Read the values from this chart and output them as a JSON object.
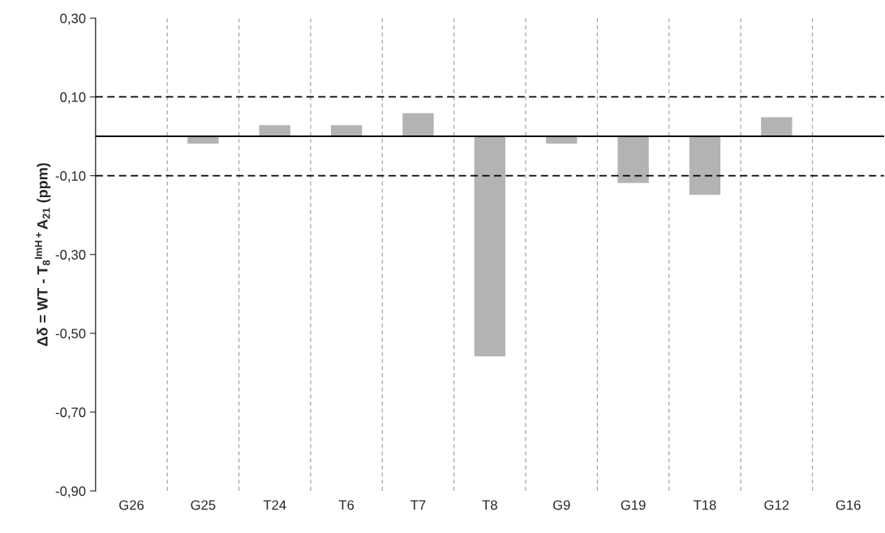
{
  "chart_data": {
    "type": "bar",
    "ylabel": "Δδ = WT - T$_{8}$$^{ImH+}$A$_{21}$ (ppm)",
    "categories": [
      "G26",
      "G25",
      "T24",
      "T6",
      "T7",
      "T8",
      "G9",
      "G19",
      "T18",
      "G12",
      "G16"
    ],
    "values": [
      null,
      -0.02,
      0.03,
      0.03,
      0.06,
      -0.56,
      -0.02,
      -0.12,
      -0.15,
      0.05,
      null
    ],
    "color": "#b3b3b3",
    "ylim": [
      -0.9,
      0.3
    ],
    "yticks": [
      {
        "value": 0.3,
        "label": "0,30"
      },
      {
        "value": 0.1,
        "label": "0,10"
      },
      {
        "value": -0.1,
        "label": "-0,10"
      },
      {
        "value": -0.3,
        "label": "-0,30"
      },
      {
        "value": -0.5,
        "label": "-0,50"
      },
      {
        "value": -0.7,
        "label": "-0,70"
      },
      {
        "value": -0.9,
        "label": "-0,90"
      }
    ],
    "grid": "x",
    "ref_lines": [
      {
        "axis": "y",
        "value": 0.1,
        "line_style": "dashed",
        "color": "#000000"
      },
      {
        "axis": "y",
        "value": 0,
        "line_style": "solid",
        "color": "#000000"
      },
      {
        "axis": "y",
        "value": -0.1,
        "line_style": "dashed",
        "color": "#000000"
      }
    ]
  }
}
